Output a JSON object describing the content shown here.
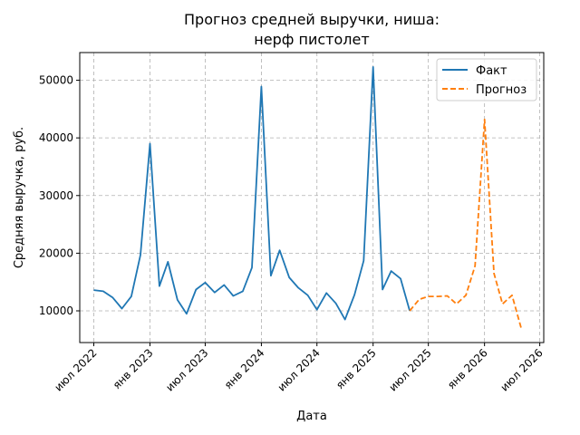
{
  "chart_data": {
    "type": "line",
    "title": "Прогноз средней выручки, ниша:",
    "subtitle": "нерф пистолет",
    "xlabel": "Дата",
    "ylabel": "Средняя выручка, руб.",
    "ylim": [
      4500,
      54800
    ],
    "xlim": [
      "2022-05-16",
      "2026-07-14"
    ],
    "grid": true,
    "grid_style": "dashed",
    "legend_position": "top-right",
    "y_ticks": [
      10000,
      20000,
      30000,
      40000,
      50000
    ],
    "x_ticks": [
      {
        "date": "2022-07-01",
        "label": "июл 2022"
      },
      {
        "date": "2023-01-01",
        "label": "янв 2023"
      },
      {
        "date": "2023-07-01",
        "label": "июл 2023"
      },
      {
        "date": "2024-01-01",
        "label": "янв 2024"
      },
      {
        "date": "2024-07-01",
        "label": "июл 2024"
      },
      {
        "date": "2025-01-01",
        "label": "янв 2025"
      },
      {
        "date": "2025-07-01",
        "label": "июл 2025"
      },
      {
        "date": "2026-01-01",
        "label": "янв 2026"
      },
      {
        "date": "2026-07-01",
        "label": "июл 2026"
      }
    ],
    "series": [
      {
        "name": "Факт",
        "color": "#1f77b4",
        "style": "solid",
        "x": [
          "2022-07-01",
          "2022-08-01",
          "2022-09-01",
          "2022-10-01",
          "2022-11-01",
          "2022-12-01",
          "2023-01-01",
          "2023-02-01",
          "2023-03-01",
          "2023-04-01",
          "2023-05-01",
          "2023-06-01",
          "2023-07-01",
          "2023-08-01",
          "2023-09-01",
          "2023-10-01",
          "2023-11-01",
          "2023-12-01",
          "2024-01-01",
          "2024-02-01",
          "2024-03-01",
          "2024-04-01",
          "2024-05-01",
          "2024-06-01",
          "2024-07-01",
          "2024-08-01",
          "2024-09-01",
          "2024-10-01",
          "2024-11-01",
          "2024-12-01",
          "2025-01-01",
          "2025-02-01",
          "2025-03-01",
          "2025-04-01",
          "2025-05-01"
        ],
        "values": [
          13600,
          13400,
          12300,
          10400,
          12500,
          19700,
          39000,
          14300,
          18500,
          11900,
          9500,
          13700,
          14900,
          13200,
          14500,
          12600,
          13400,
          17500,
          48900,
          16100,
          20500,
          15800,
          14000,
          12700,
          10200,
          13100,
          11300,
          8500,
          12800,
          18700,
          52300,
          13700,
          16900,
          15600,
          10000
        ]
      },
      {
        "name": "Прогноз",
        "color": "#ff7f0e",
        "style": "dashed",
        "x": [
          "2025-05-01",
          "2025-06-01",
          "2025-07-01",
          "2025-08-01",
          "2025-09-01",
          "2025-10-01",
          "2025-11-01",
          "2025-12-01",
          "2026-01-01",
          "2026-02-01",
          "2026-03-01",
          "2026-04-01",
          "2026-05-01"
        ],
        "values": [
          10000,
          12000,
          12500,
          12500,
          12600,
          11200,
          12700,
          17800,
          43200,
          16500,
          11200,
          12700,
          7000
        ]
      }
    ]
  }
}
